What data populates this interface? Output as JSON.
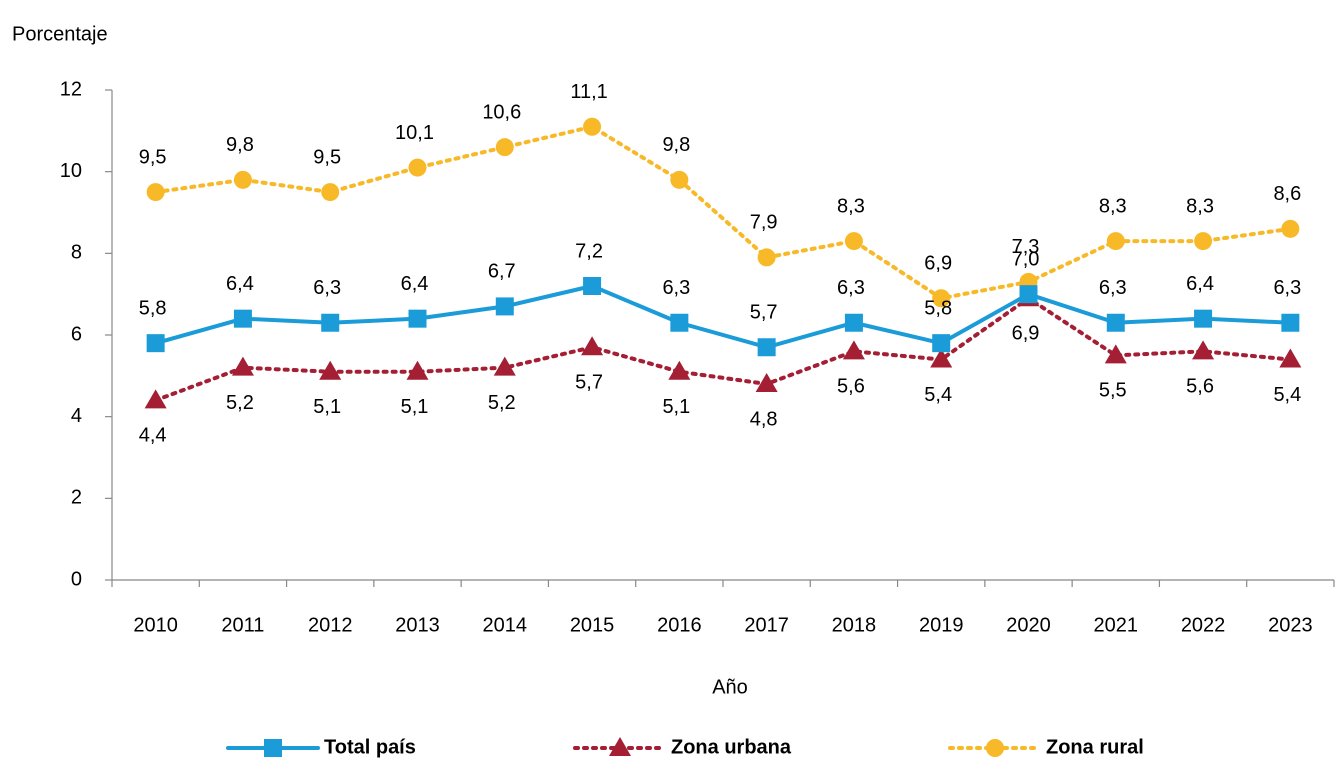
{
  "chart_data": {
    "type": "line",
    "y_label": "Porcentaje",
    "x_label": "Año",
    "categories": [
      "2010",
      "2011",
      "2012",
      "2013",
      "2014",
      "2015",
      "2016",
      "2017",
      "2018",
      "2019",
      "2020",
      "2021",
      "2022",
      "2023"
    ],
    "ylim": [
      0,
      12
    ],
    "yticks": [
      0,
      2,
      4,
      6,
      8,
      10,
      12
    ],
    "series": [
      {
        "name": "Total país",
        "color": "#1b9cd8",
        "marker": "square",
        "line_style": "solid",
        "label_position": "above",
        "values": [
          5.8,
          6.4,
          6.3,
          6.4,
          6.7,
          7.2,
          6.3,
          5.7,
          6.3,
          5.8,
          7.0,
          6.3,
          6.4,
          6.3
        ],
        "value_labels": [
          "5,8",
          "6,4",
          "6,3",
          "6,4",
          "6,7",
          "7,2",
          "6,3",
          "5,7",
          "6,3",
          "5,8",
          "7,0",
          "6,3",
          "6,4",
          "6,3"
        ]
      },
      {
        "name": "Zona urbana",
        "color": "#a41e34",
        "marker": "triangle",
        "line_style": "dotted",
        "label_position": "below",
        "values": [
          4.4,
          5.2,
          5.1,
          5.1,
          5.2,
          5.7,
          5.1,
          4.8,
          5.6,
          5.4,
          6.9,
          5.5,
          5.6,
          5.4
        ],
        "value_labels": [
          "4,4",
          "5,2",
          "5,1",
          "5,1",
          "5,2",
          "5,7",
          "5,1",
          "4,8",
          "5,6",
          "5,4",
          "6,9",
          "5,5",
          "5,6",
          "5,4"
        ]
      },
      {
        "name": "Zona rural",
        "color": "#f7b927",
        "marker": "circle",
        "line_style": "dotted",
        "label_position": "above",
        "values": [
          9.5,
          9.8,
          9.5,
          10.1,
          10.6,
          11.1,
          9.8,
          7.9,
          8.3,
          6.9,
          7.3,
          8.3,
          8.3,
          8.6
        ],
        "value_labels": [
          "9,5",
          "9,8",
          "9,5",
          "10,1",
          "10,6",
          "11,1",
          "9,8",
          "7,9",
          "8,3",
          "6,9",
          "7,3",
          "8,3",
          "8,3",
          "8,6"
        ]
      }
    ]
  }
}
